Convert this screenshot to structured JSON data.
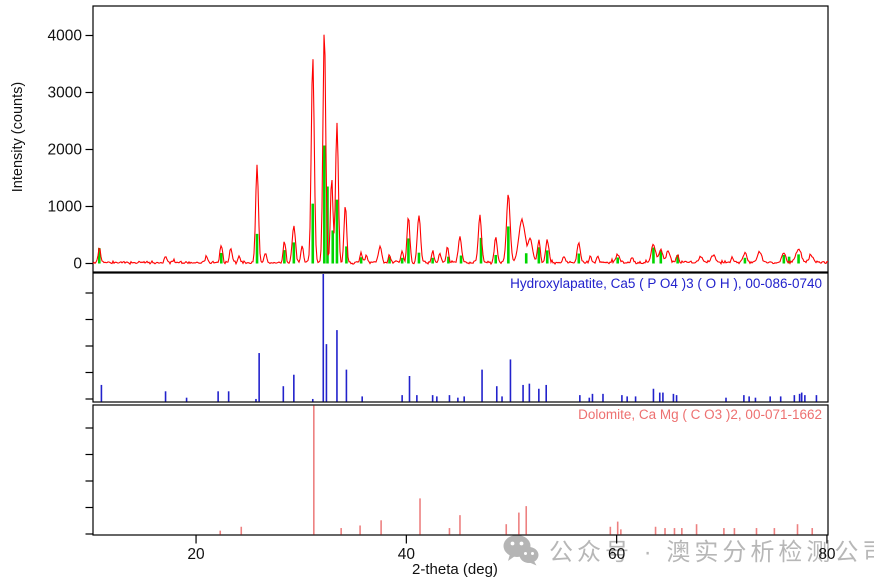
{
  "chart": {
    "y_axis_title": "Intensity (counts)",
    "x_axis_title": "2-theta (deg)",
    "x_tick_labels": [
      "20",
      "40",
      "60",
      "80"
    ],
    "y_tick_labels": [
      "0",
      "1000",
      "2000",
      "3000",
      "4000"
    ]
  },
  "watermark": {
    "icon": "wechat-icon",
    "text": "公众号 · 澳实分析检测公司",
    "color": "#B7B7B7"
  },
  "chart_data": {
    "type": "line",
    "title": "",
    "xlabel": "2-theta (deg)",
    "ylabel": "Intensity (counts)",
    "x_range": [
      10.2,
      80.1
    ],
    "x_ticks": [
      20,
      40,
      60,
      80
    ],
    "grid": false,
    "panels": [
      {
        "name": "measured",
        "y_ticks": [
          0,
          1000,
          2000,
          3000,
          4000
        ],
        "y_range": [
          -150,
          4500
        ],
        "series": [
          {
            "name": "measured-trace",
            "type": "line",
            "color": "#FF0000",
            "baseline_counts": 18,
            "noise_counts": 30,
            "default_sigma_deg": 0.11,
            "peaks": [
              [
                10.8,
                260
              ],
              [
                17.1,
                110
              ],
              [
                21.0,
                90
              ],
              [
                22.4,
                310
              ],
              [
                23.3,
                270
              ],
              [
                24.1,
                120
              ],
              [
                25.8,
                1700,
                0.13
              ],
              [
                26.6,
                150
              ],
              [
                28.4,
                390
              ],
              [
                29.3,
                650,
                0.15
              ],
              [
                30.1,
                290
              ],
              [
                31.1,
                3590,
                0.14
              ],
              [
                32.2,
                4100,
                0.13
              ],
              [
                32.9,
                1500,
                0.12
              ],
              [
                33.4,
                2450,
                0.13
              ],
              [
                34.2,
                1035,
                0.12
              ],
              [
                35.7,
                170
              ],
              [
                36.2,
                130
              ],
              [
                37.5,
                290,
                0.15
              ],
              [
                38.4,
                120
              ],
              [
                39.6,
                200
              ],
              [
                40.2,
                800,
                0.13
              ],
              [
                41.2,
                830,
                0.15
              ],
              [
                42.5,
                200
              ],
              [
                43.2,
                150
              ],
              [
                43.9,
                270
              ],
              [
                45.1,
                460,
                0.15
              ],
              [
                47.0,
                820,
                0.15
              ],
              [
                48.5,
                440,
                0.13
              ],
              [
                49.7,
                1205,
                0.17
              ],
              [
                51.0,
                750,
                0.3
              ],
              [
                51.8,
                400,
                0.2
              ],
              [
                52.6,
                380,
                0.13
              ],
              [
                53.4,
                400,
                0.15
              ],
              [
                55.0,
                100
              ],
              [
                56.4,
                345,
                0.15
              ],
              [
                57.5,
                90
              ],
              [
                58.2,
                100
              ],
              [
                60.1,
                150,
                0.15
              ],
              [
                61.5,
                90
              ],
              [
                63.5,
                315,
                0.2
              ],
              [
                64.2,
                230,
                0.18
              ],
              [
                64.9,
                200,
                0.18
              ],
              [
                65.8,
                150
              ],
              [
                68.0,
                90,
                0.2
              ],
              [
                69.2,
                140,
                0.2
              ],
              [
                71.0,
                90
              ],
              [
                72.2,
                170,
                0.18
              ],
              [
                73.6,
                180,
                0.2
              ],
              [
                75.9,
                160,
                0.2
              ],
              [
                77.3,
                230,
                0.25
              ],
              [
                78.5,
                120,
                0.2
              ]
            ]
          },
          {
            "name": "matched-peak-sticks",
            "type": "sticks",
            "color": "#00D500",
            "sticks": [
              [
                10.8,
                270
              ],
              [
                22.4,
                185
              ],
              [
                25.8,
                520
              ],
              [
                28.4,
                235
              ],
              [
                29.3,
                370
              ],
              [
                31.1,
                1050
              ],
              [
                32.2,
                2070
              ],
              [
                32.5,
                1350
              ],
              [
                33.0,
                580
              ],
              [
                33.4,
                1120
              ],
              [
                34.3,
                300
              ],
              [
                35.7,
                110
              ],
              [
                38.4,
                120
              ],
              [
                39.6,
                100
              ],
              [
                40.2,
                440
              ],
              [
                41.2,
                190
              ],
              [
                42.5,
                100
              ],
              [
                44.0,
                120
              ],
              [
                45.2,
                140
              ],
              [
                47.1,
                450
              ],
              [
                48.5,
                150
              ],
              [
                49.7,
                650
              ],
              [
                51.4,
                180
              ],
              [
                52.6,
                285
              ],
              [
                53.4,
                230
              ],
              [
                56.4,
                175
              ],
              [
                60.1,
                105
              ],
              [
                63.5,
                280
              ],
              [
                64.2,
                230
              ],
              [
                65.8,
                150
              ],
              [
                72.2,
                100
              ],
              [
                75.9,
                150
              ],
              [
                76.4,
                120
              ],
              [
                77.3,
                160
              ]
            ]
          }
        ]
      },
      {
        "name": "hydroxylapatite-reference",
        "label": "Hydroxylapatite, Ca5 ( P O4 )3 ( O H ), 00-086-0740",
        "phase": "Hydroxylapatite",
        "formula": "Ca5 ( P O4 )3 ( O H )",
        "pdf_number": "00-086-0740",
        "color": "#2222CC",
        "y_range": [
          0,
          100
        ],
        "sticks": [
          [
            11.0,
            13
          ],
          [
            17.1,
            8
          ],
          [
            19.1,
            3
          ],
          [
            22.1,
            8
          ],
          [
            23.1,
            8
          ],
          [
            25.7,
            2
          ],
          [
            26.0,
            38
          ],
          [
            28.3,
            12
          ],
          [
            29.3,
            21
          ],
          [
            31.1,
            2
          ],
          [
            32.1,
            103
          ],
          [
            32.4,
            45
          ],
          [
            33.4,
            56
          ],
          [
            34.3,
            25
          ],
          [
            35.8,
            4
          ],
          [
            39.6,
            5
          ],
          [
            40.3,
            20
          ],
          [
            41.0,
            5
          ],
          [
            42.5,
            5
          ],
          [
            42.9,
            4
          ],
          [
            44.1,
            5
          ],
          [
            44.9,
            3
          ],
          [
            45.5,
            4
          ],
          [
            47.2,
            25
          ],
          [
            48.6,
            12
          ],
          [
            49.1,
            4
          ],
          [
            49.9,
            33
          ],
          [
            51.1,
            13
          ],
          [
            51.7,
            14
          ],
          [
            52.6,
            10
          ],
          [
            53.3,
            13
          ],
          [
            56.5,
            5
          ],
          [
            57.4,
            3
          ],
          [
            57.7,
            6
          ],
          [
            58.7,
            6
          ],
          [
            60.5,
            5
          ],
          [
            61.0,
            4
          ],
          [
            61.8,
            4
          ],
          [
            63.5,
            10
          ],
          [
            64.1,
            7
          ],
          [
            64.4,
            7
          ],
          [
            65.4,
            6
          ],
          [
            65.7,
            5
          ],
          [
            70.4,
            3
          ],
          [
            72.1,
            5
          ],
          [
            72.6,
            4
          ],
          [
            73.2,
            3
          ],
          [
            74.6,
            4
          ],
          [
            75.6,
            4
          ],
          [
            76.9,
            5
          ],
          [
            77.4,
            6
          ],
          [
            77.6,
            7
          ],
          [
            77.9,
            5
          ],
          [
            79.0,
            5
          ]
        ]
      },
      {
        "name": "dolomite-reference",
        "label": "Dolomite, Ca Mg ( C O3 )2, 00-071-1662",
        "phase": "Dolomite",
        "formula": "Ca Mg ( C O3 )2",
        "pdf_number": "00-071-1662",
        "color": "#ED8080",
        "label_color": "#ED7070",
        "y_range": [
          0,
          100
        ],
        "sticks": [
          [
            22.3,
            3
          ],
          [
            24.3,
            6
          ],
          [
            31.2,
            103
          ],
          [
            33.8,
            5
          ],
          [
            35.6,
            7
          ],
          [
            37.6,
            11
          ],
          [
            41.3,
            28
          ],
          [
            44.1,
            5
          ],
          [
            45.1,
            15
          ],
          [
            49.5,
            8
          ],
          [
            50.7,
            17
          ],
          [
            51.4,
            22
          ],
          [
            59.4,
            6
          ],
          [
            60.1,
            10
          ],
          [
            60.4,
            4
          ],
          [
            63.7,
            6
          ],
          [
            64.6,
            5
          ],
          [
            65.5,
            5
          ],
          [
            66.2,
            5
          ],
          [
            67.6,
            8
          ],
          [
            70.2,
            5
          ],
          [
            71.2,
            5
          ],
          [
            73.3,
            5
          ],
          [
            75.0,
            5
          ],
          [
            77.2,
            8
          ],
          [
            78.6,
            5
          ]
        ]
      }
    ]
  }
}
